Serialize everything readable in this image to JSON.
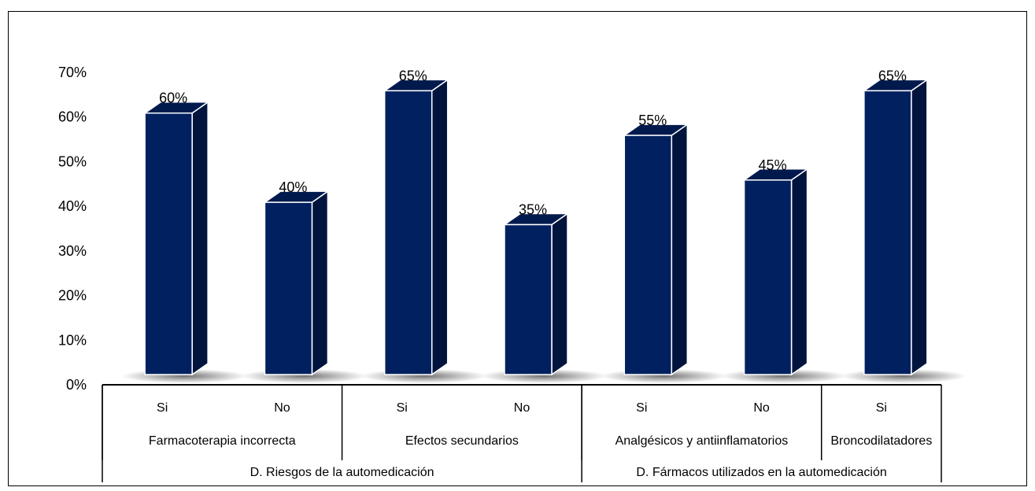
{
  "chart_data": {
    "type": "bar",
    "style": "3d-column",
    "bar_color": "#002060",
    "bar_side_color": "#00143D",
    "bar_top_color": "#001A4D",
    "bars": [
      {
        "label": "Si",
        "value": 60,
        "data_label": "60%"
      },
      {
        "label": "No",
        "value": 40,
        "data_label": "40%"
      },
      {
        "label": "Si",
        "value": 65,
        "data_label": "65%"
      },
      {
        "label": "No",
        "value": 35,
        "data_label": "35%"
      },
      {
        "label": "Si",
        "value": 55,
        "data_label": "55%"
      },
      {
        "label": "No",
        "value": 45,
        "data_label": "45%"
      },
      {
        "label": "Si",
        "value": 65,
        "data_label": "65%"
      }
    ],
    "groups": [
      {
        "label": "Farmacoterapia incorrecta",
        "start": 0,
        "end": 1
      },
      {
        "label": "Efectos secundarios",
        "start": 2,
        "end": 3
      },
      {
        "label": "Analgésicos y antiinflamatorios",
        "start": 4,
        "end": 5
      },
      {
        "label": "Broncodilatadores",
        "start": 6,
        "end": 6
      }
    ],
    "supergroups": [
      {
        "label": "D. Riesgos de la automedicación",
        "start": 0,
        "end": 3
      },
      {
        "label": "D. Fármacos utilizados en la automedicación",
        "start": 4,
        "end": 6
      }
    ],
    "ylim": [
      0,
      70
    ],
    "yticks": [
      "0%",
      "10%",
      "20%",
      "30%",
      "40%",
      "50%",
      "60%",
      "70%"
    ],
    "grid": false,
    "legend": "none"
  }
}
